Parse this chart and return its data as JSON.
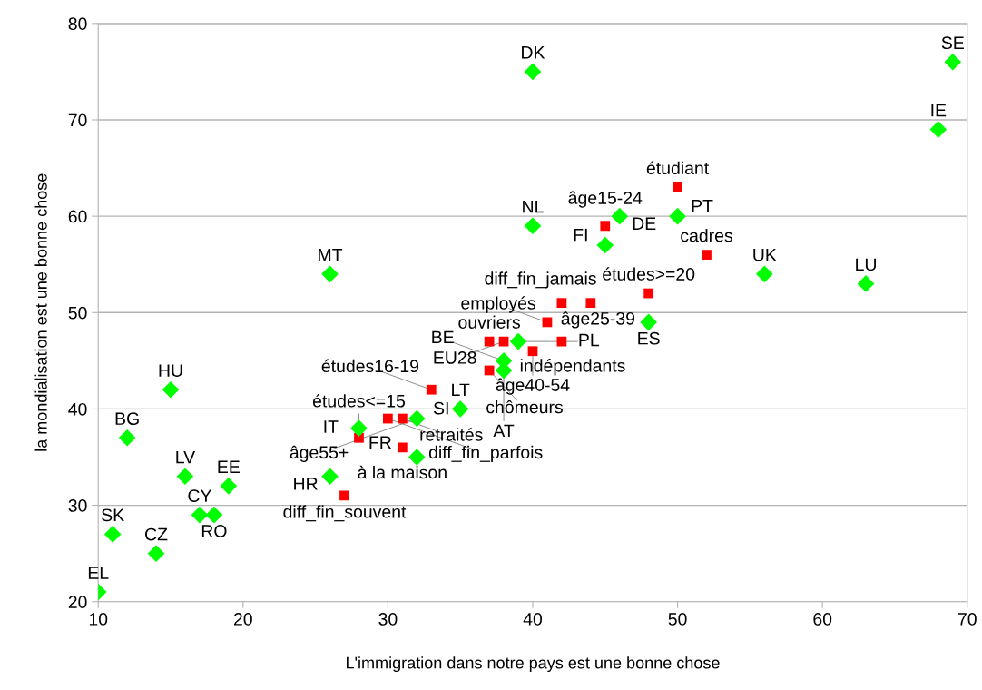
{
  "chart_data": {
    "type": "scatter",
    "xlabel": "L'immigration dans notre pays est une bonne chose",
    "ylabel": "la mondialisation est une bonne chose",
    "xlim": [
      10,
      70
    ],
    "xticks": [
      10,
      20,
      30,
      40,
      50,
      60,
      70
    ],
    "ylim": [
      20,
      80
    ],
    "yticks": [
      20,
      30,
      40,
      50,
      60,
      70,
      80
    ],
    "grid": "y",
    "legend": false,
    "series": [
      {
        "color": "#ff0000",
        "marker": "square",
        "x": [
          50,
          45,
          52,
          48,
          42,
          44,
          41,
          42,
          37,
          40,
          38,
          37,
          33,
          28,
          31,
          30,
          31,
          27
        ],
        "values": [
          63,
          59,
          56,
          52,
          51,
          51,
          49,
          47,
          47,
          46,
          47,
          44,
          42,
          37,
          36,
          39,
          39,
          31
        ]
      },
      {
        "color": "#00ff00",
        "marker": "diamond",
        "x": [
          10,
          11,
          14,
          12,
          15,
          16,
          17,
          18,
          19,
          26,
          26,
          40,
          40,
          46,
          45,
          50,
          48,
          56,
          63,
          68,
          69,
          32,
          35,
          28,
          32,
          38,
          38,
          39
        ],
        "values": [
          21,
          27,
          25,
          37,
          42,
          33,
          29,
          29,
          32,
          54,
          33,
          75,
          59,
          60,
          57,
          60,
          49,
          54,
          53,
          69,
          76,
          35,
          40,
          38,
          39,
          45,
          44,
          47
        ]
      }
    ],
    "annotations": [
      {
        "text": "étudiant",
        "x": 50,
        "y": 63
      },
      {
        "text": "âge15-24",
        "x": 45,
        "y": 59
      },
      {
        "text": "cadres",
        "x": 52,
        "y": 56
      },
      {
        "text": "études>=20",
        "x": 48,
        "y": 52
      },
      {
        "text": "diff_fin_jamais",
        "x": 42,
        "y": 51
      },
      {
        "text": "âge25-39",
        "x": 44,
        "y": 51
      },
      {
        "text": "employés",
        "x": 41,
        "y": 49
      },
      {
        "text": "indépendants",
        "x": 42,
        "y": 47
      },
      {
        "text": "ouvriers",
        "x": 37,
        "y": 47
      },
      {
        "text": "âge40-54",
        "x": 40,
        "y": 46
      },
      {
        "text": "EU28",
        "x": 38,
        "y": 47
      },
      {
        "text": "chômeurs",
        "x": 37,
        "y": 44
      },
      {
        "text": "études16-19",
        "x": 33,
        "y": 42
      },
      {
        "text": "études<=15",
        "x": 28,
        "y": 37
      },
      {
        "text": "à la maison",
        "x": 31,
        "y": 36
      },
      {
        "text": "diff_fin_parfois",
        "x": 30,
        "y": 39
      },
      {
        "text": "retraités",
        "x": 31,
        "y": 39
      },
      {
        "text": "âge55+",
        "x": 32,
        "y": 39
      },
      {
        "text": "diff_fin_souvent",
        "x": 27,
        "y": 31
      },
      {
        "text": "EL",
        "x": 10,
        "y": 21
      },
      {
        "text": "SK",
        "x": 11,
        "y": 27
      },
      {
        "text": "CZ",
        "x": 14,
        "y": 25
      },
      {
        "text": "BG",
        "x": 12,
        "y": 37
      },
      {
        "text": "HU",
        "x": 15,
        "y": 42
      },
      {
        "text": "LV",
        "x": 16,
        "y": 33
      },
      {
        "text": "CY",
        "x": 17,
        "y": 29
      },
      {
        "text": "RO",
        "x": 18,
        "y": 29
      },
      {
        "text": "EE",
        "x": 19,
        "y": 32
      },
      {
        "text": "MT",
        "x": 26,
        "y": 54
      },
      {
        "text": "HR",
        "x": 26,
        "y": 33
      },
      {
        "text": "DK",
        "x": 40,
        "y": 75
      },
      {
        "text": "NL",
        "x": 40,
        "y": 59
      },
      {
        "text": "DE",
        "x": 46,
        "y": 60
      },
      {
        "text": "FI",
        "x": 45,
        "y": 57
      },
      {
        "text": "PT",
        "x": 50,
        "y": 60
      },
      {
        "text": "ES",
        "x": 48,
        "y": 49
      },
      {
        "text": "UK",
        "x": 56,
        "y": 54
      },
      {
        "text": "LU",
        "x": 63,
        "y": 53
      },
      {
        "text": "IE",
        "x": 68,
        "y": 69
      },
      {
        "text": "SE",
        "x": 69,
        "y": 76
      },
      {
        "text": "FR",
        "x": 32,
        "y": 35
      },
      {
        "text": "LT",
        "x": 35,
        "y": 40
      },
      {
        "text": "IT",
        "x": 28,
        "y": 38
      },
      {
        "text": "SI",
        "x": 32,
        "y": 39
      },
      {
        "text": "BE",
        "x": 38,
        "y": 45
      },
      {
        "text": "AT",
        "x": 38,
        "y": 44
      },
      {
        "text": "PL",
        "x": 39,
        "y": 47
      }
    ]
  }
}
